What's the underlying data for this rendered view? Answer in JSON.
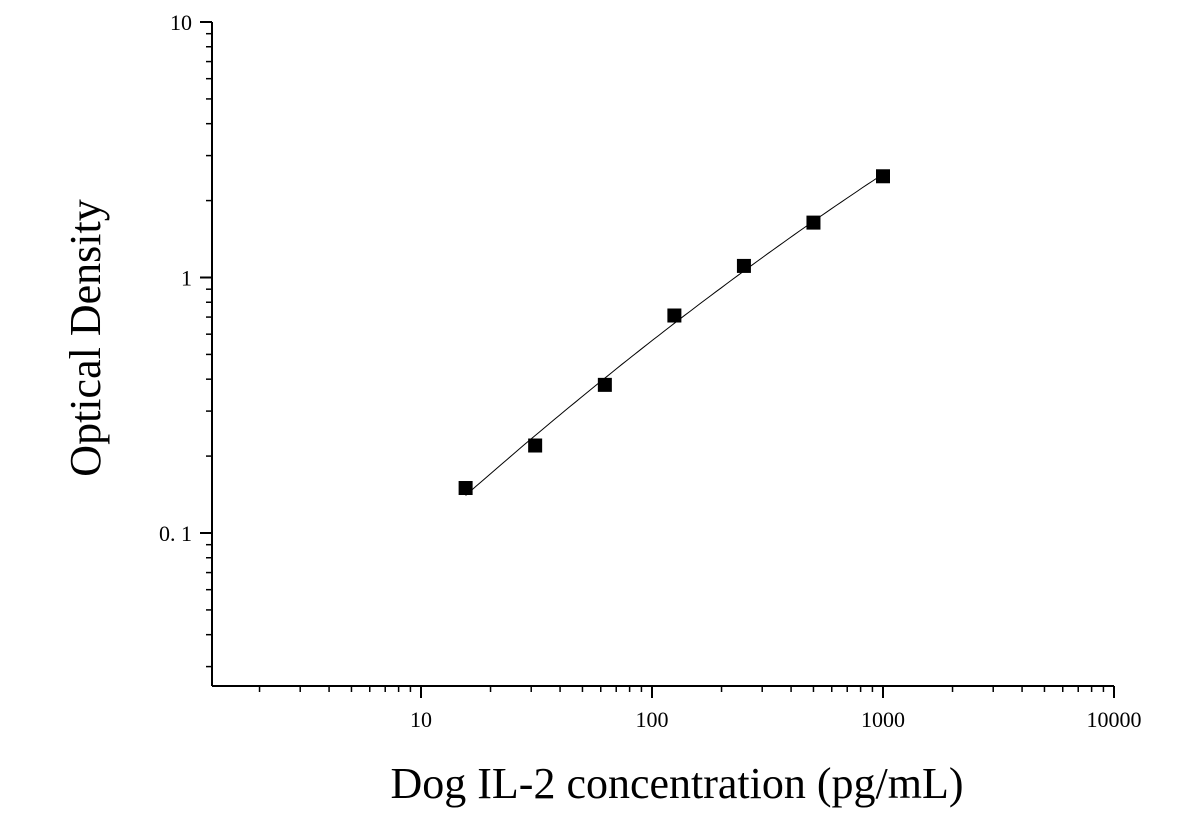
{
  "chart_data": {
    "type": "scatter",
    "title": "",
    "xlabel": "Dog IL-2 concentration (pg/mL)",
    "ylabel": "Optical Density",
    "x_scale": "log",
    "y_scale": "log",
    "xlim": [
      1.2,
      10000
    ],
    "ylim": [
      0.025,
      10
    ],
    "x_ticks": [
      10,
      100,
      1000,
      10000
    ],
    "x_tick_labels": [
      "10",
      "100",
      "1000",
      "10000"
    ],
    "y_ticks": [
      0.1,
      1,
      10
    ],
    "y_tick_labels": [
      "0. 1",
      "1",
      "10"
    ],
    "grid": false,
    "legend": "none",
    "series": [
      {
        "marker": "square",
        "color": "#000000",
        "x": [
          15.6,
          31.2,
          62.5,
          125,
          250,
          500,
          1000
        ],
        "y": [
          0.15,
          0.22,
          0.38,
          0.71,
          1.11,
          1.64,
          2.49
        ]
      }
    ],
    "fit_curve": {
      "x_range": [
        15.6,
        1000
      ],
      "color": "#000000"
    }
  }
}
